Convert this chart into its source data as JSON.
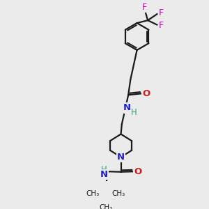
{
  "bg": "#ebebeb",
  "bc": "#1a1a1a",
  "Nc": "#2020cc",
  "Oc": "#cc2020",
  "Fc": "#cc00bb",
  "Hc": "#3a9a8a",
  "figsize": [
    3.0,
    3.0
  ],
  "dpi": 100,
  "xlim": [
    0,
    10
  ],
  "ylim": [
    0,
    10
  ],
  "lw": 1.6
}
